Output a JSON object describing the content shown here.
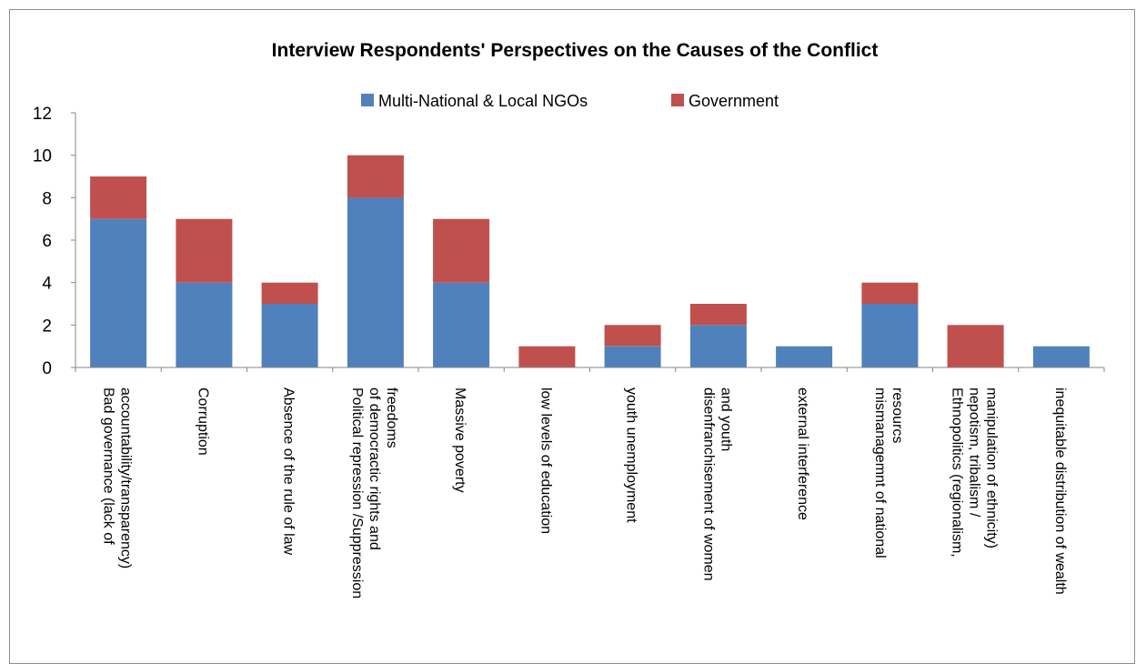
{
  "chart_data": {
    "type": "bar",
    "stacked": true,
    "title": "Interview Respondents' Perspectives on the Causes of the Conflict",
    "xlabel": "",
    "ylabel": "",
    "ylim": [
      0,
      12
    ],
    "yticks": [
      0,
      2,
      4,
      6,
      8,
      10,
      12
    ],
    "grid": false,
    "legend_position": "top",
    "categories": [
      [
        "Bad governance (lack of",
        "accountability/transparency)"
      ],
      [
        "Corruption"
      ],
      [
        "Absence of the rule of law"
      ],
      [
        "Political repression /Suppression",
        "of democractic rights and",
        "freedoms"
      ],
      [
        "Massive poverty"
      ],
      [
        "low levels of education"
      ],
      [
        "youth unemployment"
      ],
      [
        "disenfranchisement of women",
        "and youth"
      ],
      [
        "external interference"
      ],
      [
        "mismanagemnt of national",
        "resourcs"
      ],
      [
        "Ethnopolitics (regionalism,",
        "nepotism, tribalism /",
        "manipulation of ethnicity)"
      ],
      [
        "inequitable distribution of wealth"
      ]
    ],
    "series": [
      {
        "name": "Multi-National & Local NGOs",
        "color": "#4f81bd",
        "values": [
          7,
          4,
          3,
          8,
          4,
          0,
          1,
          2,
          1,
          3,
          0,
          1
        ]
      },
      {
        "name": "Government",
        "color": "#c0504d",
        "values": [
          2,
          3,
          1,
          2,
          3,
          1,
          1,
          1,
          0,
          1,
          2,
          0
        ]
      }
    ]
  }
}
